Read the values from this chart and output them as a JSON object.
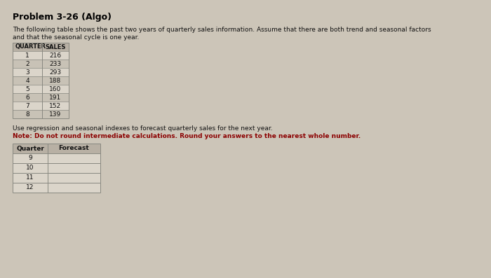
{
  "title": "Problem 3-26 (Algo)",
  "description_line1": "The following table shows the past two years of quarterly sales information. Assume that there are both trend and seasonal factors",
  "description_line2": "and that the seasonal cycle is one year.",
  "data_table_headers": [
    "QUARTER",
    "SALES"
  ],
  "data_table_rows": [
    [
      "1",
      "216"
    ],
    [
      "2",
      "233"
    ],
    [
      "3",
      "293"
    ],
    [
      "4",
      "188"
    ],
    [
      "5",
      "160"
    ],
    [
      "6",
      "191"
    ],
    [
      "7",
      "152"
    ],
    [
      "8",
      "139"
    ]
  ],
  "instruction_line1": "Use regression and seasonal indexes to forecast quarterly sales for the next year.",
  "instruction_line2": "Note: Do not round intermediate calculations. Round your answers to the nearest whole number.",
  "forecast_table_headers": [
    "Quarter",
    "Forecast"
  ],
  "forecast_table_rows": [
    [
      "9",
      ""
    ],
    [
      "10",
      ""
    ],
    [
      "11",
      ""
    ],
    [
      "12",
      ""
    ]
  ],
  "bg_color": "#ccc5b8",
  "table_bg": "#dbd5ca",
  "table_header_bg": "#b8b0a4",
  "border_color": "#888880",
  "title_color": "#000000",
  "note_color": "#8b0000",
  "body_text_color": "#111111",
  "font_size_title": 9,
  "font_size_body": 6.5,
  "font_size_table": 6.5,
  "font_size_note": 6.5
}
